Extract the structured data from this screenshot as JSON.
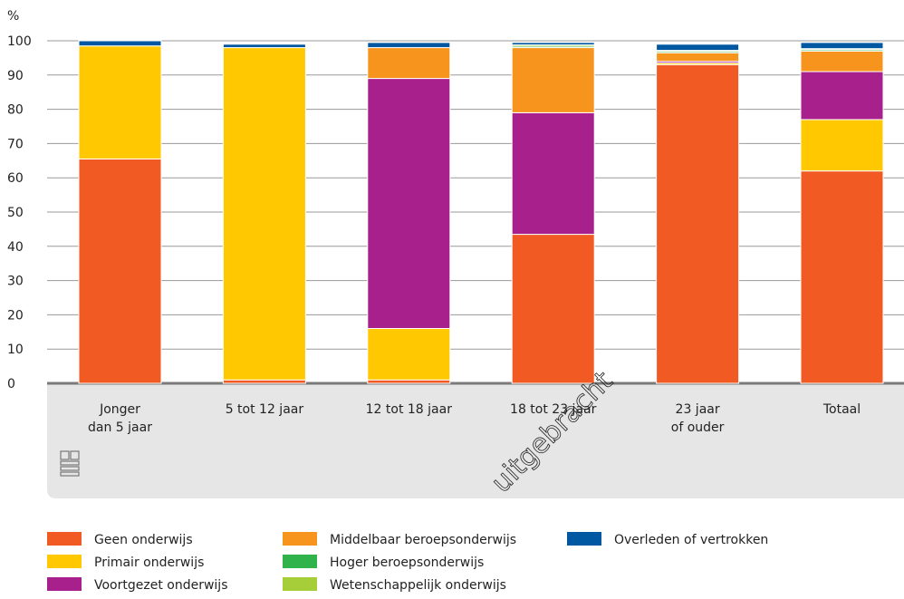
{
  "chart_data": {
    "type": "bar",
    "stacked": true,
    "ylabel": "%",
    "ylim": [
      0,
      100
    ],
    "yticks": [
      0,
      10,
      20,
      30,
      40,
      50,
      60,
      70,
      80,
      90,
      100
    ],
    "grid": true,
    "legend_position": "bottom",
    "categories": [
      [
        "Jonger",
        "dan 5 jaar"
      ],
      [
        "5 tot 12 jaar"
      ],
      [
        "12 tot 18 jaar"
      ],
      [
        "18 tot 23 jaar"
      ],
      [
        "23 jaar",
        "of ouder"
      ],
      [
        "Totaal"
      ]
    ],
    "series": [
      {
        "name": "Geen onderwijs",
        "color": "#f15a22",
        "values": [
          65.5,
          1,
          1,
          43.5,
          93,
          62
        ]
      },
      {
        "name": "Primair onderwijs",
        "color": "#ffc800",
        "values": [
          33,
          97,
          15,
          0,
          0.5,
          15
        ]
      },
      {
        "name": "Voortgezet onderwijs",
        "color": "#a7208c",
        "values": [
          0,
          0,
          73,
          35.5,
          0.5,
          14
        ]
      },
      {
        "name": "Middelbaar beroepsonderwijs",
        "color": "#f7941d",
        "values": [
          0,
          0,
          9,
          19,
          2.5,
          6
        ]
      },
      {
        "name": "Hoger beroepsonderwijs",
        "color": "#2fb34a",
        "values": [
          0,
          0,
          0,
          0.4,
          0.4,
          0.4
        ]
      },
      {
        "name": "Wetenschappelijk onderwijs",
        "color": "#a6ce39",
        "values": [
          0,
          0,
          0,
          0.4,
          0.3,
          0.3
        ]
      },
      {
        "name": "Overleden of vertrokken",
        "color": "#0058a3",
        "values": [
          1.5,
          1,
          1.5,
          0.7,
          1.8,
          1.8
        ]
      }
    ]
  },
  "watermark": "uitgebracht"
}
